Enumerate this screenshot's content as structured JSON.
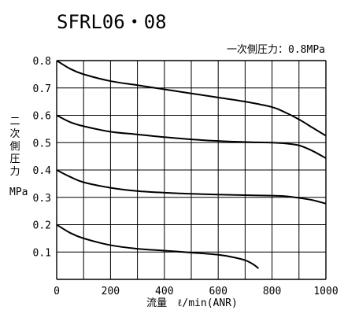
{
  "title": "SFRL06・08",
  "chart_data": {
    "type": "line",
    "annotation": "一次側圧力：0.8MPa",
    "xlabel": "流量　ℓ/min(ANR)",
    "ylabel_chars": [
      "二",
      "次",
      "側",
      "圧",
      "力"
    ],
    "ylabel_unit": "MPa",
    "xlim": [
      0,
      1000
    ],
    "ylim": [
      0,
      0.8
    ],
    "x_ticks": [
      "0",
      "200",
      "400",
      "600",
      "800",
      "1000"
    ],
    "y_ticks": [
      "0.1",
      "0.2",
      "0.3",
      "0.4",
      "0.5",
      "0.6",
      "0.7",
      "0.8"
    ],
    "grid": true,
    "series": [
      {
        "x": [
          0,
          50,
          100,
          200,
          300,
          400,
          500,
          600,
          700,
          800,
          850,
          900,
          950,
          1000
        ],
        "y": [
          0.8,
          0.77,
          0.75,
          0.725,
          0.71,
          0.695,
          0.68,
          0.665,
          0.65,
          0.63,
          0.61,
          0.585,
          0.555,
          0.525
        ]
      },
      {
        "x": [
          0,
          50,
          100,
          200,
          300,
          400,
          500,
          600,
          700,
          750,
          800,
          850,
          900,
          950,
          1000
        ],
        "y": [
          0.6,
          0.575,
          0.56,
          0.54,
          0.53,
          0.52,
          0.512,
          0.506,
          0.502,
          0.501,
          0.5,
          0.497,
          0.49,
          0.47,
          0.443
        ]
      },
      {
        "x": [
          0,
          50,
          100,
          200,
          300,
          400,
          500,
          600,
          700,
          800,
          850,
          900,
          950,
          1000
        ],
        "y": [
          0.4,
          0.375,
          0.355,
          0.335,
          0.323,
          0.317,
          0.313,
          0.31,
          0.308,
          0.306,
          0.304,
          0.298,
          0.29,
          0.277
        ]
      },
      {
        "x": [
          0,
          50,
          100,
          200,
          300,
          400,
          500,
          600,
          650,
          700,
          730,
          750
        ],
        "y": [
          0.2,
          0.17,
          0.15,
          0.125,
          0.112,
          0.105,
          0.098,
          0.09,
          0.082,
          0.07,
          0.055,
          0.04
        ]
      }
    ]
  }
}
